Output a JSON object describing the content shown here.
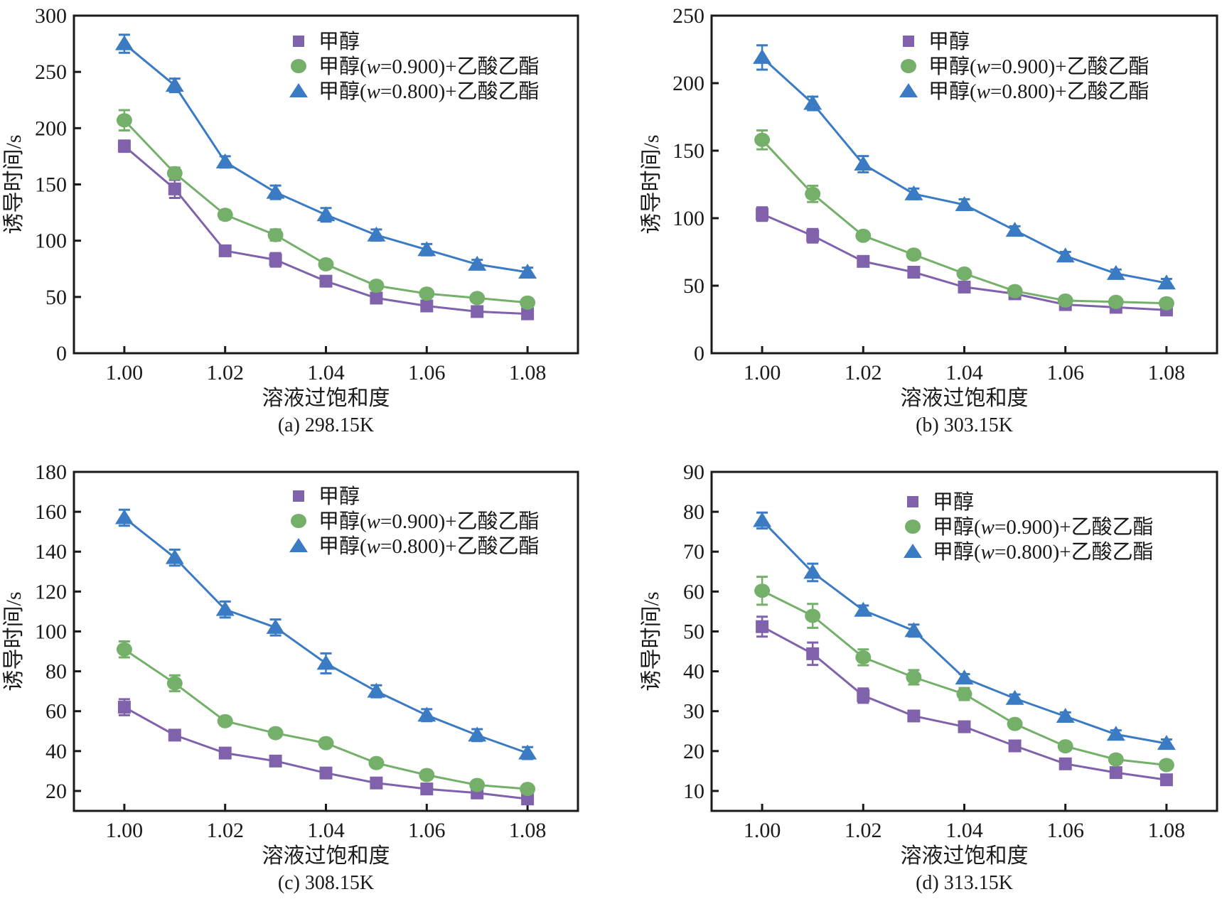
{
  "colors": {
    "methanol": "#7f62ab",
    "mix_0900": "#74b06a",
    "mix_0800": "#3a7bc4",
    "axis": "#1a1a1a"
  },
  "chart_data": [
    {
      "id": "a",
      "type": "line",
      "caption": "(a) 298.15K",
      "xlabel": "溶液过饱和度",
      "ylabel": "诱导时间/s",
      "xlim": [
        0.99,
        1.09
      ],
      "ylim": [
        0,
        300
      ],
      "xticks": [
        "1.00",
        "1.02",
        "1.04",
        "1.06",
        "1.08"
      ],
      "yticks": [
        "0",
        "50",
        "100",
        "150",
        "200",
        "250",
        "300"
      ],
      "grid": false,
      "legend_position": "top-right",
      "x": [
        1.0,
        1.01,
        1.02,
        1.03,
        1.04,
        1.05,
        1.06,
        1.07,
        1.08
      ],
      "series": [
        {
          "name": "甲醇",
          "marker": "square",
          "color_key": "methanol",
          "values": [
            184,
            146,
            91,
            83,
            64,
            49,
            42,
            37,
            35
          ],
          "errors": [
            5,
            8,
            4,
            6,
            3,
            3,
            3,
            3,
            3
          ]
        },
        {
          "name": "甲醇(w=0.900)+乙酸乙酯",
          "marker": "circle",
          "color_key": "mix_0900",
          "values": [
            207,
            160,
            123,
            105,
            79,
            60,
            53,
            49,
            45
          ],
          "errors": [
            9,
            5,
            4,
            5,
            3,
            3,
            3,
            3,
            3
          ]
        },
        {
          "name": "甲醇(w=0.800)+乙酸乙酯",
          "marker": "triangle",
          "color_key": "mix_0800",
          "values": [
            275,
            238,
            170,
            143,
            123,
            105,
            92,
            79,
            72
          ],
          "errors": [
            8,
            6,
            5,
            6,
            6,
            5,
            5,
            4,
            4
          ]
        }
      ]
    },
    {
      "id": "b",
      "type": "line",
      "caption": "(b) 303.15K",
      "xlabel": "溶液过饱和度",
      "ylabel": "诱导时间/s",
      "xlim": [
        0.99,
        1.09
      ],
      "ylim": [
        0,
        250
      ],
      "xticks": [
        "1.00",
        "1.02",
        "1.04",
        "1.06",
        "1.08"
      ],
      "yticks": [
        "0",
        "50",
        "100",
        "150",
        "200",
        "250"
      ],
      "grid": false,
      "legend_position": "top-right",
      "x": [
        1.0,
        1.01,
        1.02,
        1.03,
        1.04,
        1.05,
        1.06,
        1.07,
        1.08
      ],
      "series": [
        {
          "name": "甲醇",
          "marker": "square",
          "color_key": "methanol",
          "values": [
            103,
            87,
            68,
            60,
            49,
            44,
            36,
            34,
            32
          ],
          "errors": [
            5,
            5,
            2,
            2,
            2,
            2,
            2,
            2,
            2
          ]
        },
        {
          "name": "甲醇(w=0.900)+乙酸乙酯",
          "marker": "circle",
          "color_key": "mix_0900",
          "values": [
            158,
            118,
            87,
            73,
            59,
            46,
            39,
            38,
            37
          ],
          "errors": [
            7,
            6,
            3,
            3,
            2,
            2,
            2,
            2,
            2
          ]
        },
        {
          "name": "甲醇(w=0.800)+乙酸乙酯",
          "marker": "triangle",
          "color_key": "mix_0800",
          "values": [
            219,
            185,
            140,
            118,
            110,
            91,
            72,
            59,
            52
          ],
          "errors": [
            9,
            5,
            6,
            4,
            4,
            3,
            3,
            3,
            3
          ]
        }
      ]
    },
    {
      "id": "c",
      "type": "line",
      "caption": "(c) 308.15K",
      "xlabel": "溶液过饱和度",
      "ylabel": "诱导时间/s",
      "xlim": [
        0.99,
        1.09
      ],
      "ylim": [
        10,
        180
      ],
      "xticks": [
        "1.00",
        "1.02",
        "1.04",
        "1.06",
        "1.08"
      ],
      "yticks": [
        "20",
        "40",
        "60",
        "80",
        "100",
        "120",
        "140",
        "160",
        "180"
      ],
      "grid": false,
      "legend_position": "top-right",
      "x": [
        1.0,
        1.01,
        1.02,
        1.03,
        1.04,
        1.05,
        1.06,
        1.07,
        1.08
      ],
      "series": [
        {
          "name": "甲醇",
          "marker": "square",
          "color_key": "methanol",
          "values": [
            62,
            48,
            39,
            35,
            29,
            24,
            21,
            19,
            16
          ],
          "errors": [
            4,
            2,
            2,
            2,
            2,
            2,
            2,
            2,
            2
          ]
        },
        {
          "name": "甲醇(w=0.900)+乙酸乙酯",
          "marker": "circle",
          "color_key": "mix_0900",
          "values": [
            91,
            74,
            55,
            49,
            44,
            34,
            28,
            23,
            21
          ],
          "errors": [
            4,
            4,
            2,
            2,
            2,
            2,
            2,
            2,
            2
          ]
        },
        {
          "name": "甲醇(w=0.800)+乙酸乙酯",
          "marker": "triangle",
          "color_key": "mix_0800",
          "values": [
            157,
            137,
            111,
            102,
            84,
            70,
            58,
            48,
            39
          ],
          "errors": [
            4,
            4,
            4,
            4,
            5,
            3,
            3,
            3,
            3
          ]
        }
      ]
    },
    {
      "id": "d",
      "type": "line",
      "caption": "(d) 313.15K",
      "xlabel": "溶液过饱和度",
      "ylabel": "诱导时间/s",
      "xlim": [
        0.99,
        1.09
      ],
      "ylim": [
        5,
        90
      ],
      "xticks": [
        "1.00",
        "1.02",
        "1.04",
        "1.06",
        "1.08"
      ],
      "yticks": [
        "10",
        "20",
        "30",
        "40",
        "50",
        "60",
        "70",
        "80",
        "90"
      ],
      "grid": false,
      "legend_position": "top-right",
      "x": [
        1.0,
        1.01,
        1.02,
        1.03,
        1.04,
        1.05,
        1.06,
        1.07,
        1.08
      ],
      "series": [
        {
          "name": "甲醇",
          "marker": "square",
          "color_key": "methanol",
          "values": [
            51.2,
            44.4,
            33.9,
            28.8,
            26.1,
            21.3,
            16.8,
            14.6,
            12.8
          ],
          "errors": [
            2.5,
            2.8,
            1.8,
            1.2,
            1,
            1,
            1,
            1,
            1
          ]
        },
        {
          "name": "甲醇(w=0.900)+乙酸乙酯",
          "marker": "circle",
          "color_key": "mix_0900",
          "values": [
            60.2,
            53.9,
            43.5,
            38.5,
            34.3,
            26.8,
            21.2,
            17.9,
            16.5
          ],
          "errors": [
            3.5,
            3,
            2,
            1.8,
            1.5,
            1,
            1,
            1,
            1
          ]
        },
        {
          "name": "甲醇(w=0.800)+乙酸乙酯",
          "marker": "triangle",
          "color_key": "mix_0800",
          "values": [
            77.8,
            64.8,
            55.3,
            50.2,
            38.3,
            33.2,
            28.7,
            24.2,
            21.9
          ],
          "errors": [
            2,
            2.2,
            1.2,
            1.5,
            1,
            1,
            1,
            1,
            1
          ]
        }
      ]
    }
  ]
}
